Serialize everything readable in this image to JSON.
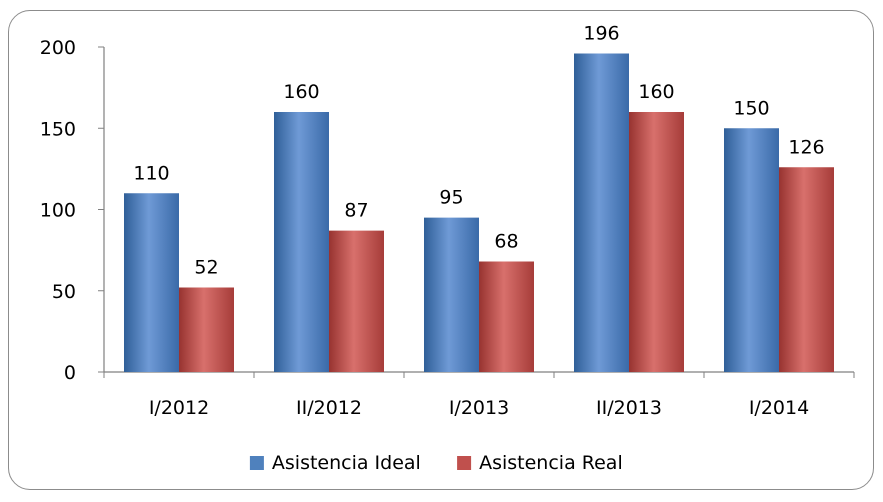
{
  "chart_data": {
    "type": "bar",
    "title": "",
    "xlabel": "",
    "ylabel": "",
    "categories": [
      "I/2012",
      "II/2012",
      "I/2013",
      "II/2013",
      "I/2014"
    ],
    "series": [
      {
        "name": "Asistencia Ideal",
        "values": [
          110,
          160,
          95,
          196,
          150
        ],
        "color": "#4f81bd"
      },
      {
        "name": "Asistencia Real",
        "values": [
          52,
          87,
          68,
          160,
          126
        ],
        "color": "#c0504d"
      }
    ],
    "ylim": [
      0,
      200
    ],
    "yticks": [
      0,
      50,
      100,
      150,
      200
    ],
    "grid": false,
    "legend": "bottom",
    "data_labels": true
  }
}
